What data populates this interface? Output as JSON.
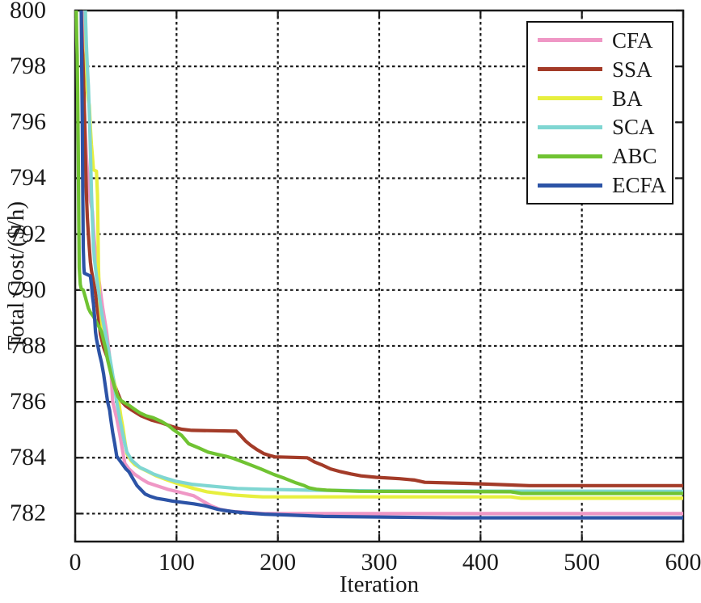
{
  "figure": {
    "background": "#ffffff"
  },
  "chart_data": {
    "type": "line",
    "title": "",
    "xlabel": "Iteration",
    "ylabel": "Total Cost/($/h)",
    "xlim": [
      0,
      600
    ],
    "ylim": [
      781,
      800
    ],
    "xticks": [
      0,
      100,
      200,
      300,
      400,
      500,
      600
    ],
    "yticks": [
      782,
      784,
      786,
      788,
      790,
      792,
      794,
      796,
      798,
      800
    ],
    "grid": true,
    "grid_style": "dashed",
    "legend_position": "top-right",
    "axis_color": "#1a1a1a",
    "series": [
      {
        "name": "CFA",
        "color": "#EF97C5",
        "final_value": 782.0,
        "points": [
          [
            7,
            800
          ],
          [
            8,
            797.5
          ],
          [
            9,
            796.5
          ],
          [
            11,
            794.8
          ],
          [
            13,
            793.8
          ],
          [
            15,
            793.2
          ],
          [
            17,
            792.8
          ],
          [
            18,
            792.2
          ],
          [
            19,
            791.7
          ],
          [
            21,
            791.0
          ],
          [
            24,
            790.2
          ],
          [
            27,
            789.4
          ],
          [
            31,
            788.5
          ],
          [
            35,
            787.3
          ],
          [
            37,
            786.0
          ],
          [
            41,
            785.4
          ],
          [
            44,
            784.85
          ],
          [
            47,
            784.2
          ],
          [
            49,
            783.8
          ],
          [
            53,
            783.6
          ],
          [
            59,
            783.4
          ],
          [
            65,
            783.25
          ],
          [
            72,
            783.1
          ],
          [
            80,
            783.0
          ],
          [
            91,
            782.87
          ],
          [
            105,
            782.75
          ],
          [
            117,
            782.64
          ],
          [
            126,
            782.45
          ],
          [
            134,
            782.28
          ],
          [
            143,
            782.15
          ],
          [
            154,
            782.08
          ],
          [
            170,
            782.04
          ],
          [
            185,
            782.0
          ],
          [
            600,
            782.0
          ]
        ]
      },
      {
        "name": "SSA",
        "color": "#A33B28",
        "final_value": 783.0,
        "points": [
          [
            6,
            800
          ],
          [
            7,
            798.6
          ],
          [
            8,
            798.2
          ],
          [
            9,
            796.5
          ],
          [
            10,
            795.0
          ],
          [
            11,
            793.5
          ],
          [
            12,
            792.6
          ],
          [
            13,
            792.0
          ],
          [
            14,
            791.5
          ],
          [
            15,
            791.0
          ],
          [
            16,
            790.7
          ],
          [
            18,
            790.3
          ],
          [
            20,
            789.9
          ],
          [
            22,
            789.3
          ],
          [
            25,
            788.4
          ],
          [
            28,
            787.95
          ],
          [
            33,
            787.45
          ],
          [
            36,
            787.0
          ],
          [
            38,
            786.7
          ],
          [
            41,
            786.4
          ],
          [
            45,
            786.05
          ],
          [
            50,
            785.85
          ],
          [
            56,
            785.7
          ],
          [
            65,
            785.5
          ],
          [
            75,
            785.35
          ],
          [
            85,
            785.25
          ],
          [
            95,
            785.12
          ],
          [
            105,
            785.02
          ],
          [
            115,
            784.98
          ],
          [
            159,
            784.95
          ],
          [
            163,
            784.8
          ],
          [
            168,
            784.6
          ],
          [
            173,
            784.45
          ],
          [
            179,
            784.3
          ],
          [
            186,
            784.15
          ],
          [
            192,
            784.08
          ],
          [
            197,
            784.03
          ],
          [
            229,
            784.0
          ],
          [
            236,
            783.85
          ],
          [
            243,
            783.75
          ],
          [
            252,
            783.6
          ],
          [
            262,
            783.5
          ],
          [
            272,
            783.42
          ],
          [
            282,
            783.35
          ],
          [
            297,
            783.3
          ],
          [
            320,
            783.25
          ],
          [
            335,
            783.2
          ],
          [
            345,
            783.12
          ],
          [
            389,
            783.08
          ],
          [
            448,
            783.0
          ],
          [
            600,
            783.0
          ]
        ]
      },
      {
        "name": "BA",
        "color": "#E7EF3E",
        "final_value": 782.55,
        "points": [
          [
            10,
            800
          ],
          [
            11,
            798.2
          ],
          [
            12,
            797.1
          ],
          [
            13,
            796.8
          ],
          [
            14,
            796.6
          ],
          [
            15,
            795.8
          ],
          [
            16,
            795.2
          ],
          [
            17,
            794.8
          ],
          [
            18,
            794.3
          ],
          [
            21,
            794.25
          ],
          [
            22,
            793.4
          ],
          [
            23,
            790.8
          ],
          [
            24,
            789.6
          ],
          [
            26,
            788.9
          ],
          [
            28,
            788.4
          ],
          [
            31,
            787.8
          ],
          [
            34,
            787.3
          ],
          [
            38,
            786.8
          ],
          [
            41,
            786.3
          ],
          [
            43,
            786.0
          ],
          [
            45,
            785.5
          ],
          [
            47,
            785.1
          ],
          [
            49,
            784.6
          ],
          [
            51,
            784.15
          ],
          [
            55,
            783.9
          ],
          [
            59,
            783.75
          ],
          [
            65,
            783.62
          ],
          [
            72,
            783.5
          ],
          [
            80,
            783.35
          ],
          [
            91,
            783.2
          ],
          [
            103,
            783.05
          ],
          [
            117,
            782.9
          ],
          [
            130,
            782.78
          ],
          [
            141,
            782.73
          ],
          [
            155,
            782.67
          ],
          [
            175,
            782.62
          ],
          [
            185,
            782.6
          ],
          [
            430,
            782.6
          ],
          [
            440,
            782.55
          ],
          [
            600,
            782.55
          ]
        ]
      },
      {
        "name": "SCA",
        "color": "#7FD6D2",
        "final_value": 782.8,
        "points": [
          [
            10,
            800
          ],
          [
            11,
            798.8
          ],
          [
            12,
            798.0
          ],
          [
            13,
            797.3
          ],
          [
            14,
            796.3
          ],
          [
            15,
            795.0
          ],
          [
            16,
            793.5
          ],
          [
            17,
            792.5
          ],
          [
            18,
            791.6
          ],
          [
            19,
            791.1
          ],
          [
            21,
            790.5
          ],
          [
            24,
            789.7
          ],
          [
            27,
            789.0
          ],
          [
            30,
            788.4
          ],
          [
            33,
            787.8
          ],
          [
            36,
            787.2
          ],
          [
            39,
            786.5
          ],
          [
            41,
            786.0
          ],
          [
            44,
            785.4
          ],
          [
            47,
            784.85
          ],
          [
            49,
            784.5
          ],
          [
            51,
            784.2
          ],
          [
            56,
            783.9
          ],
          [
            64,
            783.65
          ],
          [
            70,
            783.55
          ],
          [
            77,
            783.42
          ],
          [
            88,
            783.28
          ],
          [
            99,
            783.16
          ],
          [
            115,
            783.05
          ],
          [
            141,
            782.96
          ],
          [
            160,
            782.9
          ],
          [
            185,
            782.87
          ],
          [
            230,
            782.84
          ],
          [
            300,
            782.81
          ],
          [
            600,
            782.8
          ]
        ]
      },
      {
        "name": "ABC",
        "color": "#70C332",
        "final_value": 782.72,
        "points": [
          [
            1,
            800
          ],
          [
            1.5,
            799
          ],
          [
            2,
            798.4
          ],
          [
            2.5,
            797
          ],
          [
            3,
            795
          ],
          [
            3.5,
            792.5
          ],
          [
            4,
            790.8
          ],
          [
            5,
            790.2
          ],
          [
            6,
            790.05
          ],
          [
            8,
            790.0
          ],
          [
            10,
            789.75
          ],
          [
            13,
            789.35
          ],
          [
            15,
            789.2
          ],
          [
            18,
            789.05
          ],
          [
            21,
            788.85
          ],
          [
            24,
            788.65
          ],
          [
            26,
            788.5
          ],
          [
            28,
            788.2
          ],
          [
            30,
            787.9
          ],
          [
            32,
            787.5
          ],
          [
            34,
            787.2
          ],
          [
            36,
            786.9
          ],
          [
            39,
            786.5
          ],
          [
            42,
            786.2
          ],
          [
            45,
            786.05
          ],
          [
            48,
            785.98
          ],
          [
            53,
            785.88
          ],
          [
            58,
            785.75
          ],
          [
            64,
            785.6
          ],
          [
            70,
            785.5
          ],
          [
            77,
            785.43
          ],
          [
            85,
            785.3
          ],
          [
            92,
            785.15
          ],
          [
            97,
            785.0
          ],
          [
            105,
            784.8
          ],
          [
            112,
            784.5
          ],
          [
            122,
            784.35
          ],
          [
            131,
            784.2
          ],
          [
            140,
            784.12
          ],
          [
            149,
            784.05
          ],
          [
            156,
            783.98
          ],
          [
            169,
            783.8
          ],
          [
            183,
            783.6
          ],
          [
            196,
            783.4
          ],
          [
            207,
            783.26
          ],
          [
            218,
            783.1
          ],
          [
            226,
            783.0
          ],
          [
            231,
            782.92
          ],
          [
            238,
            782.87
          ],
          [
            248,
            782.84
          ],
          [
            280,
            782.8
          ],
          [
            430,
            782.78
          ],
          [
            440,
            782.72
          ],
          [
            600,
            782.72
          ]
        ]
      },
      {
        "name": "ECFA",
        "color": "#2C53A6",
        "final_value": 781.85,
        "points": [
          [
            6,
            800
          ],
          [
            6.5,
            798
          ],
          [
            7,
            796
          ],
          [
            7.5,
            793.5
          ],
          [
            8,
            791.5
          ],
          [
            8.5,
            790.8
          ],
          [
            9,
            790.6
          ],
          [
            15,
            790.5
          ],
          [
            16,
            790.2
          ],
          [
            17,
            789.8
          ],
          [
            18,
            789.5
          ],
          [
            19,
            789.1
          ],
          [
            20,
            788.5
          ],
          [
            21,
            788.25
          ],
          [
            24,
            787.7
          ],
          [
            26,
            787.4
          ],
          [
            28,
            787.0
          ],
          [
            30,
            786.5
          ],
          [
            32,
            786.0
          ],
          [
            34,
            785.7
          ],
          [
            35,
            785.4
          ],
          [
            37,
            784.9
          ],
          [
            39,
            784.5
          ],
          [
            41,
            784.05
          ],
          [
            44,
            783.9
          ],
          [
            47,
            783.75
          ],
          [
            50,
            783.6
          ],
          [
            53,
            783.5
          ],
          [
            57,
            783.25
          ],
          [
            61,
            783.0
          ],
          [
            65,
            782.85
          ],
          [
            69,
            782.7
          ],
          [
            74,
            782.62
          ],
          [
            80,
            782.55
          ],
          [
            88,
            782.5
          ],
          [
            96,
            782.45
          ],
          [
            106,
            782.4
          ],
          [
            117,
            782.35
          ],
          [
            128,
            782.28
          ],
          [
            141,
            782.15
          ],
          [
            150,
            782.1
          ],
          [
            158,
            782.06
          ],
          [
            167,
            782.03
          ],
          [
            187,
            781.98
          ],
          [
            210,
            781.95
          ],
          [
            245,
            781.9
          ],
          [
            373,
            781.85
          ],
          [
            600,
            781.85
          ]
        ]
      }
    ]
  }
}
